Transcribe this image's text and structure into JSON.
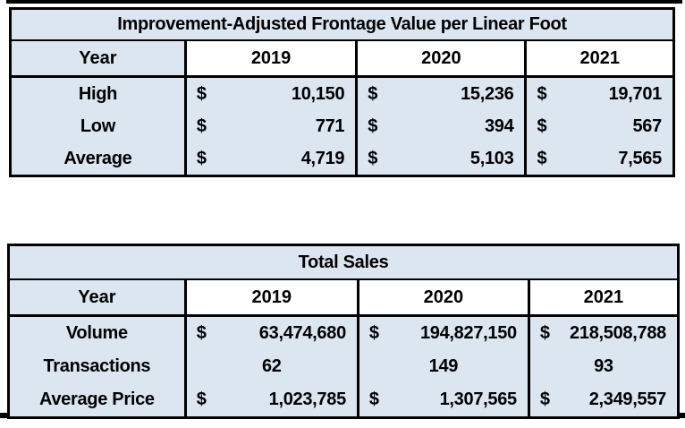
{
  "colors": {
    "cell_fill": "#dce6f1",
    "year_header_fill": "#ffffff",
    "border": "#000000",
    "text": "#000000"
  },
  "chart_data": [
    {
      "type": "table",
      "title": "Improvement-Adjusted Frontage Value per Linear Foot",
      "columns": [
        "Year",
        "2019",
        "2020",
        "2021"
      ],
      "rows": [
        {
          "label": "High",
          "prefix": "$",
          "display": [
            "10,150",
            "15,236",
            "19,701"
          ],
          "numeric": [
            10150,
            15236,
            19701
          ]
        },
        {
          "label": "Low",
          "prefix": "$",
          "display": [
            "771",
            "394",
            "567"
          ],
          "numeric": [
            771,
            394,
            567
          ]
        },
        {
          "label": "Average",
          "prefix": "$",
          "display": [
            "4,719",
            "5,103",
            "7,565"
          ],
          "numeric": [
            4719,
            5103,
            7565
          ]
        }
      ]
    },
    {
      "type": "table",
      "title": "Total Sales",
      "columns": [
        "Year",
        "2019",
        "2020",
        "2021"
      ],
      "rows": [
        {
          "label": "Volume",
          "prefix": "$",
          "display": [
            "63,474,680",
            "194,827,150",
            "218,508,788"
          ],
          "numeric": [
            63474680,
            194827150,
            218508788
          ]
        },
        {
          "label": "Transactions",
          "prefix": "",
          "display": [
            "62",
            "149",
            "93"
          ],
          "numeric": [
            62,
            149,
            93
          ]
        },
        {
          "label": "Average Price",
          "prefix": "$",
          "display": [
            "1,023,785",
            "1,307,565",
            "2,349,557"
          ],
          "numeric": [
            1023785,
            1307565,
            2349557
          ]
        }
      ]
    }
  ]
}
